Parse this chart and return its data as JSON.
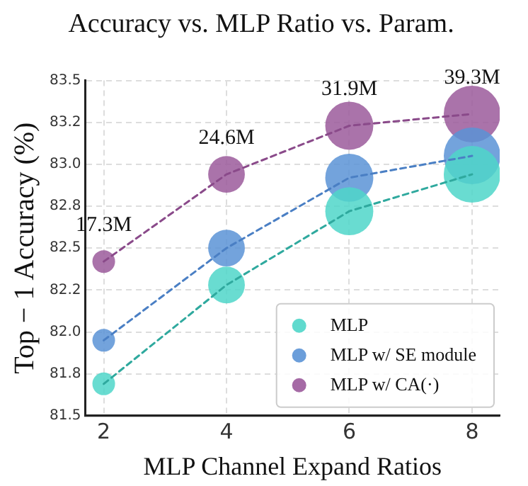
{
  "chart_data": {
    "type": "bubble",
    "title": "Accuracy vs. MLP Ratio vs. Param.",
    "xlabel": "MLP Channel Expand Ratios",
    "ylabel": "Top − 1 Accuracy (%)",
    "x": [
      2,
      4,
      6,
      8
    ],
    "series": [
      {
        "name": "MLP",
        "color": "#4fd6c9",
        "values": [
          81.69,
          82.28,
          82.72,
          82.94
        ],
        "sizes": [
          0.16,
          0.42,
          0.72,
          1
        ]
      },
      {
        "name": "MLP w/ SE module",
        "color": "#5b93d6",
        "values": [
          81.95,
          82.5,
          82.92,
          83.05
        ],
        "sizes": [
          0.16,
          0.42,
          0.72,
          1
        ]
      },
      {
        "name": "MLP w/ CA(·)",
        "color": "#9b5a9b",
        "values": [
          82.42,
          82.94,
          83.23,
          83.3
        ],
        "sizes": [
          0.16,
          0.42,
          0.72,
          1
        ]
      },
      {
        "type": "line",
        "marker": "none",
        "color": "#2fa99e",
        "values": [
          81.69,
          82.28,
          82.72,
          82.94
        ]
      },
      {
        "type": "line",
        "marker": "none",
        "color": "#4a7fc4",
        "values": [
          81.95,
          82.5,
          82.92,
          83.05
        ]
      },
      {
        "type": "line",
        "marker": "none",
        "color": "#8a4a8a",
        "values": [
          82.42,
          82.94,
          83.23,
          83.3
        ]
      }
    ],
    "annotations": [
      {
        "text": "17.3M",
        "x": 2,
        "y": 82.42
      },
      {
        "text": "24.6M",
        "x": 4,
        "y": 82.94
      },
      {
        "text": "31.9M",
        "x": 6,
        "y": 83.23
      },
      {
        "text": "39.3M",
        "x": 8,
        "y": 83.3
      }
    ],
    "xlim": [
      1.7,
      8.45
    ],
    "xticks": [
      2,
      4,
      6,
      8
    ],
    "ylim": [
      81.5,
      83.5
    ],
    "yticks": [
      {
        "value": 81.5,
        "label": "81.5"
      },
      {
        "value": 81.75,
        "label": "81.8"
      },
      {
        "value": 82,
        "label": "82.0"
      },
      {
        "value": 82.25,
        "label": "82.2"
      },
      {
        "value": 82.5,
        "label": "82.5"
      },
      {
        "value": 82.75,
        "label": "82.8"
      },
      {
        "value": 83,
        "label": "83.0"
      },
      {
        "value": 83.25,
        "label": "83.2"
      },
      {
        "value": 83.5,
        "label": "83.5"
      }
    ],
    "grid": true,
    "legend": "bottom right",
    "line_style": "dashed",
    "marker": "circle"
  }
}
